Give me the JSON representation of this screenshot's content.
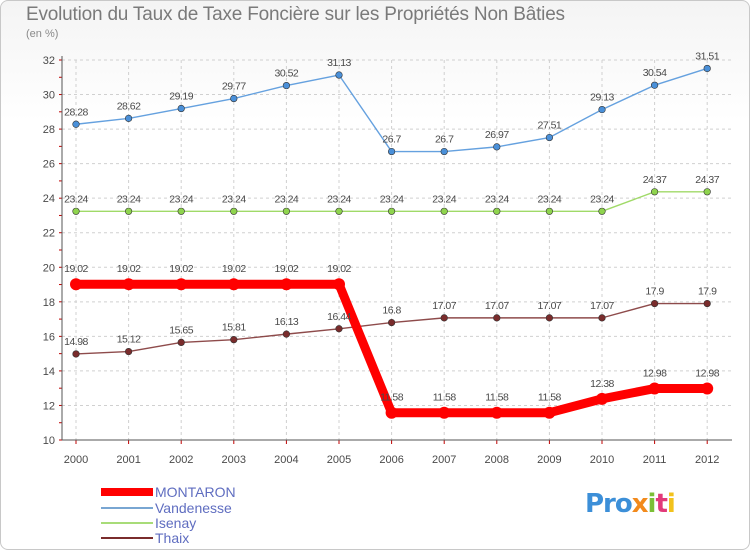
{
  "title": "Evolution du Taux de Taxe Foncière sur les Propriétés Non Bâties",
  "unit_label": "(en %)",
  "chart_data": {
    "type": "line",
    "title": "Evolution du Taux de Taxe Foncière sur les Propriétés Non Bâties",
    "ylabel": "(en %)",
    "xlabel": "",
    "ylim": [
      10,
      32
    ],
    "yticks": [
      "10",
      "12",
      "14",
      "16",
      "18",
      "20",
      "22",
      "24",
      "26",
      "28",
      "30",
      "32"
    ],
    "categories": [
      "2000",
      "2001",
      "2002",
      "2003",
      "2004",
      "2005",
      "2006",
      "2007",
      "2008",
      "2009",
      "2010",
      "2011",
      "2012"
    ],
    "grid": true,
    "series": [
      {
        "name": "MONTARON",
        "color": "#ff0000",
        "values": [
          19.02,
          19.02,
          19.02,
          19.02,
          19.02,
          19.02,
          11.58,
          11.58,
          11.58,
          11.58,
          12.38,
          12.98,
          12.98
        ],
        "labels": [
          "19.02",
          "19.02",
          "19.02",
          "19.02",
          "19.02",
          "19.02",
          "11.58",
          "11.58",
          "11.58",
          "11.58",
          "12.38",
          "12.98",
          "12.98"
        ]
      },
      {
        "name": "Vandenesse",
        "color": "#4a90d9",
        "values": [
          28.28,
          28.62,
          29.19,
          29.77,
          30.52,
          31.13,
          26.7,
          26.7,
          26.97,
          27.51,
          29.13,
          30.54,
          31.51
        ],
        "labels": [
          "28.28",
          "28.62",
          "29.19",
          "29.77",
          "30.52",
          "31.13",
          "26.7",
          "26.7",
          "26.97",
          "27.51",
          "29.13",
          "30.54",
          "31.51"
        ]
      },
      {
        "name": "Isenay",
        "color": "#8fd44e",
        "values": [
          23.24,
          23.24,
          23.24,
          23.24,
          23.24,
          23.24,
          23.24,
          23.24,
          23.24,
          23.24,
          23.24,
          24.37,
          24.37
        ],
        "labels": [
          "23.24",
          "23.24",
          "23.24",
          "23.24",
          "23.24",
          "23.24",
          "23.24",
          "23.24",
          "23.24",
          "23.24",
          "23.24",
          "24.37",
          "24.37"
        ]
      },
      {
        "name": "Thaix",
        "color": "#7a2c2c",
        "values": [
          14.98,
          15.12,
          15.65,
          15.81,
          16.13,
          16.44,
          16.8,
          17.07,
          17.07,
          17.07,
          17.07,
          17.9,
          17.9
        ],
        "labels": [
          "14.98",
          "15.12",
          "15.65",
          "15.81",
          "16.13",
          "16.44",
          "16.8",
          "17.07",
          "17.07",
          "17.07",
          "17.07",
          "17.9",
          "17.9"
        ]
      }
    ]
  },
  "legend": [
    {
      "label": "MONTARON",
      "color": "#ff0000"
    },
    {
      "label": "Vandenesse",
      "color": "#79a6d2"
    },
    {
      "label": "Isenay",
      "color": "#a8dc78"
    },
    {
      "label": "Thaix",
      "color": "#7a2c2c"
    }
  ],
  "logo": {
    "p1": "Pro",
    "p2": "x",
    "p3": "i",
    "p4": "t",
    "p5": "i"
  }
}
